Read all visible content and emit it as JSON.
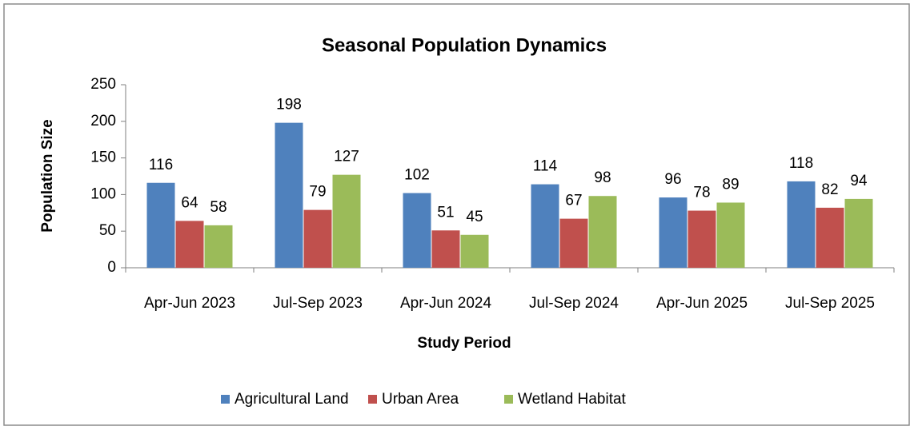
{
  "chart_data": {
    "type": "bar",
    "title": "Seasonal Population Dynamics",
    "x_label": "Study Period",
    "y_label": "Population Size",
    "categories": [
      "Apr-Jun 2023",
      "Jul-Sep 2023",
      "Apr-Jun 2024",
      "Jul-Sep 2024",
      "Apr-Jun 2025",
      "Jul-Sep 2025"
    ],
    "series": [
      {
        "name": "Agricultural Land",
        "color": "#4f81bd",
        "values": [
          116,
          198,
          102,
          114,
          96,
          118
        ]
      },
      {
        "name": "Urban Area",
        "color": "#c0504d",
        "values": [
          64,
          79,
          51,
          67,
          78,
          82
        ]
      },
      {
        "name": "Wetland Habitat",
        "color": "#9bbb59",
        "values": [
          58,
          127,
          45,
          98,
          89,
          94
        ]
      }
    ],
    "ylim": [
      0,
      250
    ],
    "yticks": [
      0,
      50,
      100,
      150,
      200,
      250
    ],
    "grid": false,
    "legend": "bottom"
  }
}
